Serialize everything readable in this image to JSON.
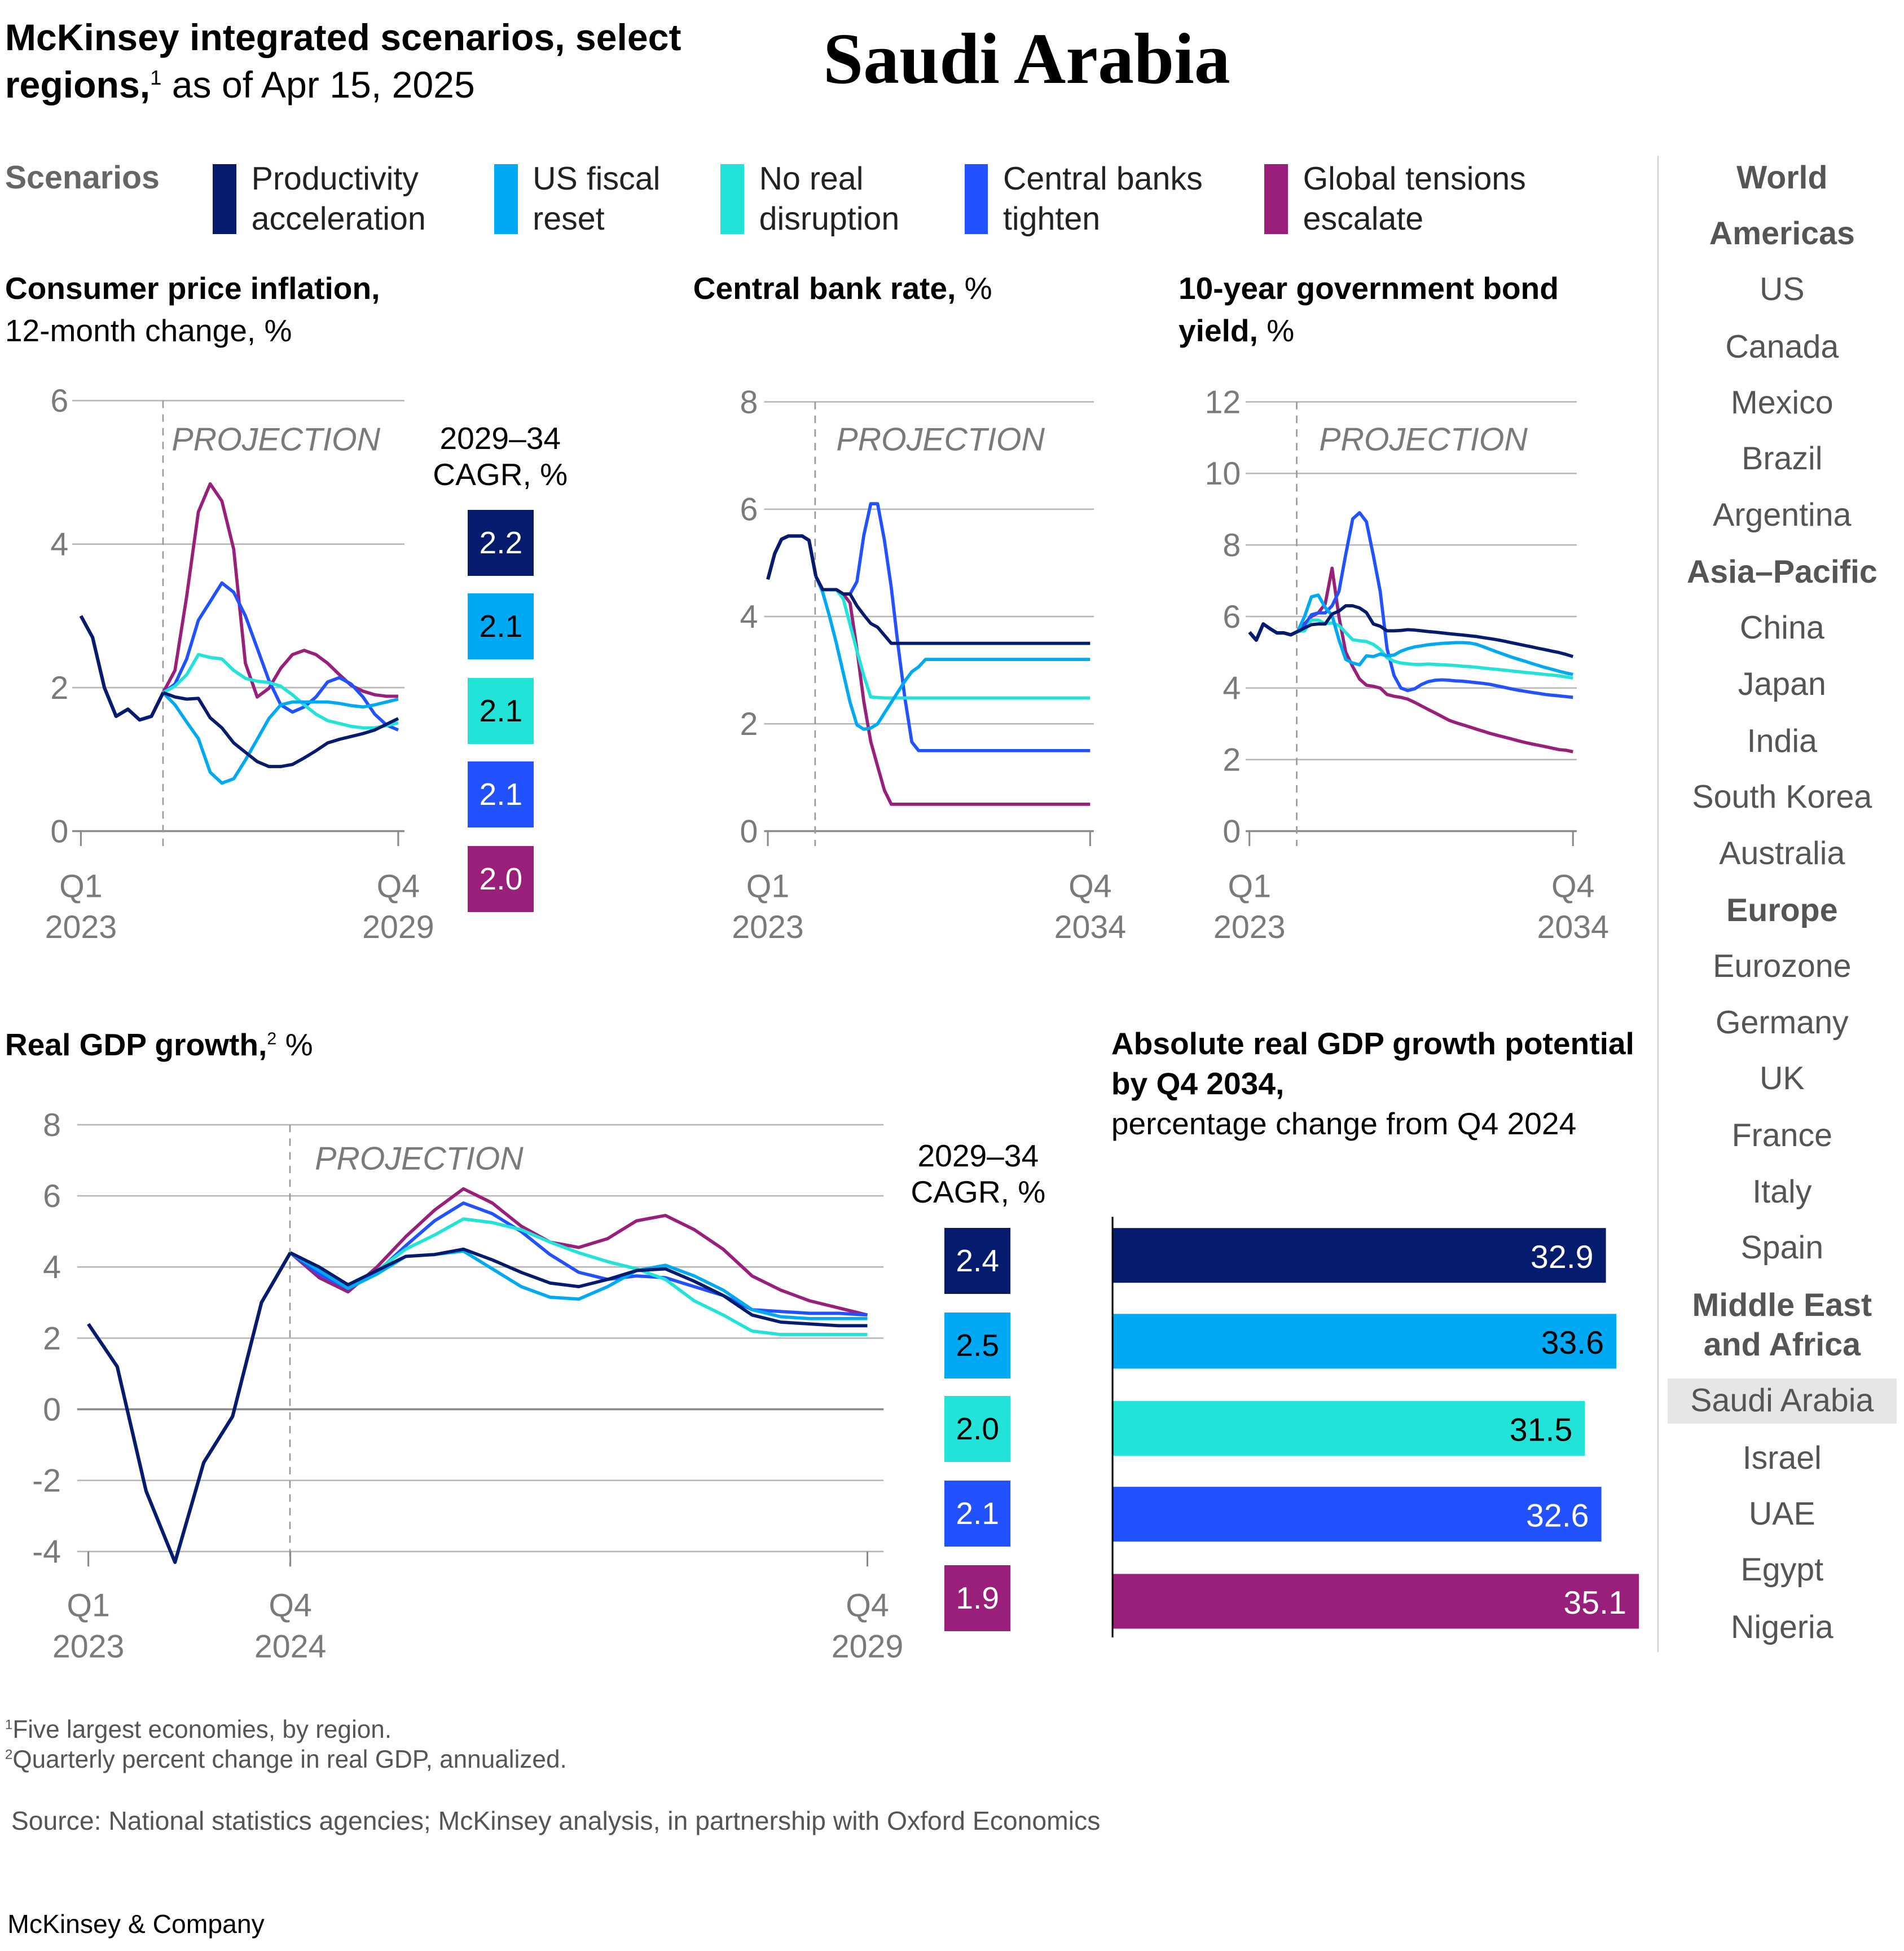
{
  "header": {
    "title_bold": "McKinsey integrated scenarios, select regions,",
    "title_sup": "1",
    "title_rest": " as of Apr 15, 2025",
    "country": "Saudi Arabia"
  },
  "legend": {
    "label": "Scenarios",
    "items": [
      {
        "name": "Productivity acceleration",
        "color": "#051C6E"
      },
      {
        "name": "US fiscal reset",
        "color": "#00A9F4"
      },
      {
        "name": "No real disruption",
        "color": "#22E3D7"
      },
      {
        "name": "Central banks tighten",
        "color": "#2251FF"
      },
      {
        "name": "Global tensions escalate",
        "color": "#9A1F7B"
      }
    ]
  },
  "chart_data": [
    {
      "type": "line",
      "title": "Consumer price inflation,",
      "subtitle": "12-month change, %",
      "annotation": "PROJECTION",
      "x_ticks": [
        {
          "q": "Q1",
          "y": "2023"
        },
        {
          "q": "Q4",
          "y": "2029"
        }
      ],
      "x_range": [
        "Q1 2023",
        "Q4 2029"
      ],
      "projection_start": "Q4 2024",
      "ylim": [
        0,
        6
      ],
      "y_ticks": [
        "0",
        "2",
        "4",
        "6"
      ],
      "grid": true,
      "history": [
        3.0,
        2.7,
        2.0,
        1.6,
        1.7,
        1.55,
        1.6,
        1.93
      ],
      "cagr_label_1": "2029–34",
      "cagr_label_2": "CAGR, %",
      "series": [
        {
          "name": "Productivity acceleration",
          "cagr": "2.2",
          "projection": [
            1.93,
            1.87,
            1.84,
            1.85,
            1.58,
            1.44,
            1.23,
            1.1,
            0.97,
            0.9,
            0.9,
            0.93,
            1.02,
            1.12,
            1.23,
            1.28,
            1.32,
            1.36,
            1.41,
            1.49,
            1.57
          ]
        },
        {
          "name": "US fiscal reset",
          "cagr": "2.1",
          "projection": [
            1.93,
            1.76,
            1.52,
            1.29,
            0.82,
            0.67,
            0.73,
            0.99,
            1.28,
            1.57,
            1.76,
            1.8,
            1.8,
            1.8,
            1.8,
            1.78,
            1.75,
            1.73,
            1.76,
            1.8,
            1.84
          ]
        },
        {
          "name": "No real disruption",
          "cagr": "2.1",
          "projection": [
            1.93,
            2.02,
            2.18,
            2.46,
            2.42,
            2.4,
            2.24,
            2.13,
            2.09,
            2.07,
            2.02,
            1.9,
            1.76,
            1.63,
            1.54,
            1.5,
            1.46,
            1.44,
            1.44,
            1.47,
            1.51
          ]
        },
        {
          "name": "Central banks tighten",
          "cagr": "2.1",
          "projection": [
            1.93,
            2.05,
            2.4,
            2.94,
            3.2,
            3.46,
            3.33,
            3.0,
            2.55,
            2.1,
            1.76,
            1.66,
            1.73,
            1.87,
            2.08,
            2.14,
            2.05,
            1.87,
            1.63,
            1.48,
            1.41
          ]
        },
        {
          "name": "Global tensions escalate",
          "cagr": "2.0",
          "projection": [
            1.93,
            2.24,
            3.27,
            4.45,
            4.84,
            4.6,
            3.93,
            2.34,
            1.87,
            1.99,
            2.27,
            2.46,
            2.52,
            2.46,
            2.34,
            2.18,
            2.03,
            1.95,
            1.9,
            1.88,
            1.88
          ]
        }
      ]
    },
    {
      "type": "line",
      "title": "Central bank rate,",
      "subtitle": " %",
      "annotation": "PROJECTION",
      "x_ticks": [
        {
          "q": "Q1",
          "y": "2023"
        },
        {
          "q": "Q4",
          "y": "2034"
        }
      ],
      "x_range": [
        "Q1 2023",
        "Q4 2034"
      ],
      "projection_start": "Q4 2024",
      "ylim": [
        0,
        8
      ],
      "y_ticks": [
        "0",
        "2",
        "4",
        "6",
        "8"
      ],
      "grid": true,
      "history": [
        4.69,
        5.17,
        5.44,
        5.5,
        5.5,
        5.5,
        5.42,
        4.75
      ],
      "series": [
        {
          "name": "Productivity acceleration",
          "projection": [
            4.75,
            4.5,
            4.5,
            4.5,
            4.42,
            4.42,
            4.2,
            4.03,
            3.87,
            3.8,
            3.65,
            3.5,
            3.5,
            3.5,
            3.5,
            3.5,
            3.5,
            3.5,
            3.5,
            3.5,
            3.5,
            3.5,
            3.5,
            3.5,
            3.5,
            3.5,
            3.5,
            3.5,
            3.5,
            3.5,
            3.5,
            3.5,
            3.5,
            3.5,
            3.5,
            3.5,
            3.5,
            3.5,
            3.5,
            3.5,
            3.5
          ]
        },
        {
          "name": "US fiscal reset",
          "projection": [
            4.75,
            4.45,
            4.0,
            3.5,
            2.95,
            2.4,
            1.98,
            1.9,
            1.92,
            2.0,
            2.2,
            2.4,
            2.6,
            2.8,
            2.97,
            3.06,
            3.2,
            3.2,
            3.2,
            3.2,
            3.2,
            3.2,
            3.2,
            3.2,
            3.2,
            3.2,
            3.2,
            3.2,
            3.2,
            3.2,
            3.2,
            3.2,
            3.2,
            3.2,
            3.2,
            3.2,
            3.2,
            3.2,
            3.2,
            3.2,
            3.2
          ]
        },
        {
          "name": "No real disruption",
          "projection": [
            4.75,
            4.5,
            4.5,
            4.5,
            4.33,
            3.85,
            3.36,
            2.9,
            2.5,
            2.49,
            2.48,
            2.48,
            2.48,
            2.48,
            2.48,
            2.48,
            2.48,
            2.48,
            2.48,
            2.48,
            2.48,
            2.48,
            2.48,
            2.48,
            2.48,
            2.48,
            2.48,
            2.48,
            2.48,
            2.48,
            2.48,
            2.48,
            2.48,
            2.48,
            2.48,
            2.48,
            2.48,
            2.48,
            2.48,
            2.48,
            2.48
          ]
        },
        {
          "name": "Central banks tighten",
          "projection": [
            4.75,
            4.5,
            4.5,
            4.5,
            4.42,
            4.42,
            4.65,
            5.51,
            6.1,
            6.1,
            5.42,
            4.54,
            3.45,
            2.47,
            1.66,
            1.5,
            1.5,
            1.5,
            1.5,
            1.5,
            1.5,
            1.5,
            1.5,
            1.5,
            1.5,
            1.5,
            1.5,
            1.5,
            1.5,
            1.5,
            1.5,
            1.5,
            1.5,
            1.5,
            1.5,
            1.5,
            1.5,
            1.5,
            1.5,
            1.5,
            1.5
          ]
        },
        {
          "name": "Global tensions escalate",
          "projection": [
            4.75,
            4.5,
            4.5,
            4.5,
            4.42,
            4.25,
            3.39,
            2.42,
            1.67,
            1.21,
            0.76,
            0.5,
            0.5,
            0.5,
            0.5,
            0.5,
            0.5,
            0.5,
            0.5,
            0.5,
            0.5,
            0.5,
            0.5,
            0.5,
            0.5,
            0.5,
            0.5,
            0.5,
            0.5,
            0.5,
            0.5,
            0.5,
            0.5,
            0.5,
            0.5,
            0.5,
            0.5,
            0.5,
            0.5,
            0.5,
            0.5
          ]
        }
      ]
    },
    {
      "type": "line",
      "title": "10-year government bond yield,",
      "subtitle": " %",
      "annotation": "PROJECTION",
      "x_ticks": [
        {
          "q": "Q1",
          "y": "2023"
        },
        {
          "q": "Q4",
          "y": "2034"
        }
      ],
      "x_range": [
        "Q1 2023",
        "Q4 2034"
      ],
      "projection_start": "Q4 2024",
      "ylim": [
        0,
        12
      ],
      "y_ticks": [
        "0",
        "2",
        "4",
        "6",
        "8",
        "10",
        "12"
      ],
      "grid": true,
      "history": [
        5.56,
        5.34,
        5.79,
        5.66,
        5.54,
        5.54,
        5.49,
        5.58
      ],
      "series": [
        {
          "name": "Productivity acceleration",
          "projection": [
            5.58,
            5.68,
            5.77,
            5.79,
            5.79,
            6.07,
            6.15,
            6.3,
            6.3,
            6.24,
            6.11,
            5.79,
            5.73,
            5.6,
            5.6,
            5.61,
            5.63,
            5.62,
            5.6,
            5.58,
            5.56,
            5.54,
            5.52,
            5.5,
            5.48,
            5.46,
            5.44,
            5.41,
            5.38,
            5.35,
            5.31,
            5.27,
            5.23,
            5.19,
            5.15,
            5.11,
            5.07,
            5.03,
            4.99,
            4.94,
            4.88
          ]
        },
        {
          "name": "US fiscal reset",
          "projection": [
            5.58,
            6.0,
            6.55,
            6.6,
            6.25,
            6.03,
            5.35,
            4.8,
            4.7,
            4.65,
            4.9,
            4.88,
            4.95,
            4.9,
            4.92,
            5.03,
            5.1,
            5.15,
            5.18,
            5.21,
            5.23,
            5.25,
            5.26,
            5.27,
            5.27,
            5.26,
            5.22,
            5.15,
            5.08,
            5.01,
            4.94,
            4.87,
            4.81,
            4.75,
            4.69,
            4.63,
            4.57,
            4.52,
            4.47,
            4.42,
            4.38
          ]
        },
        {
          "name": "No real disruption",
          "projection": [
            5.58,
            5.6,
            5.9,
            5.9,
            5.8,
            5.82,
            5.75,
            5.55,
            5.35,
            5.32,
            5.3,
            5.22,
            5.08,
            4.85,
            4.75,
            4.7,
            4.68,
            4.66,
            4.66,
            4.67,
            4.66,
            4.65,
            4.64,
            4.63,
            4.61,
            4.6,
            4.58,
            4.56,
            4.54,
            4.52,
            4.5,
            4.48,
            4.46,
            4.44,
            4.42,
            4.4,
            4.38,
            4.36,
            4.34,
            4.31,
            4.28
          ]
        },
        {
          "name": "Central banks tighten",
          "projection": [
            5.58,
            5.75,
            6.05,
            6.1,
            6.1,
            6.3,
            6.7,
            7.74,
            8.73,
            8.9,
            8.65,
            7.7,
            6.7,
            5.1,
            4.35,
            4.0,
            3.93,
            3.98,
            4.1,
            4.18,
            4.22,
            4.23,
            4.22,
            4.2,
            4.19,
            4.17,
            4.15,
            4.13,
            4.1,
            4.06,
            4.02,
            3.98,
            3.94,
            3.91,
            3.88,
            3.85,
            3.82,
            3.8,
            3.78,
            3.76,
            3.74
          ]
        },
        {
          "name": "Global tensions escalate",
          "projection": [
            5.58,
            5.8,
            6.0,
            6.1,
            6.35,
            7.35,
            6.0,
            5.0,
            4.6,
            4.25,
            4.08,
            4.05,
            4.0,
            3.82,
            3.77,
            3.74,
            3.69,
            3.6,
            3.5,
            3.4,
            3.3,
            3.2,
            3.1,
            3.03,
            2.97,
            2.91,
            2.85,
            2.79,
            2.73,
            2.68,
            2.63,
            2.58,
            2.53,
            2.48,
            2.44,
            2.4,
            2.36,
            2.32,
            2.28,
            2.26,
            2.22
          ]
        }
      ]
    },
    {
      "type": "line",
      "title": "Real GDP growth,",
      "title_sup": "2",
      "subtitle": " %",
      "annotation": "PROJECTION",
      "x_ticks": [
        {
          "q": "Q1",
          "y": "2023"
        },
        {
          "q": "Q4",
          "y": "2024"
        },
        {
          "q": "Q4",
          "y": "2029"
        }
      ],
      "x_range": [
        "Q1 2023",
        "Q4 2029"
      ],
      "projection_start": "Q4 2024",
      "ylim": [
        -4,
        8
      ],
      "y_ticks": [
        "-4",
        "-2",
        "0",
        "2",
        "4",
        "6",
        "8"
      ],
      "grid": true,
      "history": [
        2.4,
        1.2,
        -2.3,
        -4.3,
        -1.5,
        -0.2,
        3.0,
        4.4
      ],
      "cagr_label_1": "2029–34",
      "cagr_label_2": "CAGR, %",
      "series": [
        {
          "name": "Productivity acceleration",
          "cagr": "2.4",
          "projection": [
            4.4,
            4.0,
            3.5,
            3.9,
            4.3,
            4.35,
            4.5,
            4.2,
            3.85,
            3.55,
            3.45,
            3.65,
            3.9,
            3.95,
            3.6,
            3.2,
            2.65,
            2.45,
            2.4,
            2.35,
            2.35
          ]
        },
        {
          "name": "US fiscal reset",
          "cagr": "2.5",
          "projection": [
            4.4,
            3.9,
            3.4,
            3.8,
            4.3,
            4.35,
            4.45,
            3.95,
            3.45,
            3.15,
            3.1,
            3.45,
            3.9,
            4.05,
            3.75,
            3.35,
            2.8,
            2.6,
            2.55,
            2.55,
            2.55
          ]
        },
        {
          "name": "No real disruption",
          "cagr": "2.0",
          "projection": [
            4.4,
            3.95,
            3.5,
            3.9,
            4.5,
            4.9,
            5.35,
            5.25,
            5.05,
            4.7,
            4.4,
            4.15,
            3.95,
            3.65,
            3.05,
            2.65,
            2.2,
            2.1,
            2.1,
            2.1,
            2.1
          ]
        },
        {
          "name": "Central banks tighten",
          "cagr": "2.1",
          "projection": [
            4.4,
            3.8,
            3.4,
            3.85,
            4.6,
            5.3,
            5.8,
            5.5,
            5.0,
            4.35,
            3.85,
            3.65,
            3.75,
            3.7,
            3.45,
            3.2,
            2.8,
            2.75,
            2.7,
            2.7,
            2.65
          ]
        },
        {
          "name": "Global tensions escalate",
          "cagr": "1.9",
          "projection": [
            4.4,
            3.7,
            3.3,
            4.0,
            4.85,
            5.6,
            6.2,
            5.8,
            5.15,
            4.7,
            4.55,
            4.8,
            5.3,
            5.45,
            5.05,
            4.5,
            3.75,
            3.35,
            3.05,
            2.85,
            2.65
          ]
        }
      ]
    },
    {
      "type": "bar",
      "orientation": "horizontal",
      "title": "Absolute real GDP growth potential by Q4 2034,",
      "subtitle": "percentage change from Q4 2024",
      "categories": [
        "Productivity acceleration",
        "US fiscal reset",
        "No real disruption",
        "Central banks tighten",
        "Global tensions escalate"
      ],
      "values": [
        32.9,
        33.6,
        31.5,
        32.6,
        35.1
      ],
      "labels": [
        "32.9",
        "33.6",
        "31.5",
        "32.6",
        "35.1"
      ]
    }
  ],
  "nav": {
    "items": [
      {
        "label": "World",
        "heading": true
      },
      {
        "label": "Americas",
        "heading": true
      },
      {
        "label": "US"
      },
      {
        "label": "Canada"
      },
      {
        "label": "Mexico"
      },
      {
        "label": "Brazil"
      },
      {
        "label": "Argentina"
      },
      {
        "label": "Asia–Pacific",
        "heading": true
      },
      {
        "label": "China"
      },
      {
        "label": "Japan"
      },
      {
        "label": "India"
      },
      {
        "label": "South Korea"
      },
      {
        "label": "Australia"
      },
      {
        "label": "Europe",
        "heading": true
      },
      {
        "label": "Eurozone"
      },
      {
        "label": "Germany"
      },
      {
        "label": "UK"
      },
      {
        "label": "France"
      },
      {
        "label": "Italy"
      },
      {
        "label": "Spain"
      },
      {
        "label": "Middle East and Africa",
        "heading": true
      },
      {
        "label": "Saudi Arabia",
        "selected": true
      },
      {
        "label": "Israel"
      },
      {
        "label": "UAE"
      },
      {
        "label": "Egypt"
      },
      {
        "label": "Nigeria"
      }
    ]
  },
  "footnotes": [
    {
      "mark": "1",
      "text": "Five largest economies, by region."
    },
    {
      "mark": "2",
      "text": "Quarterly percent change in real GDP, annualized."
    }
  ],
  "source": "Source: National statistics agencies; McKinsey analysis, in partnership with Oxford Economics",
  "brand": "McKinsey & Company"
}
